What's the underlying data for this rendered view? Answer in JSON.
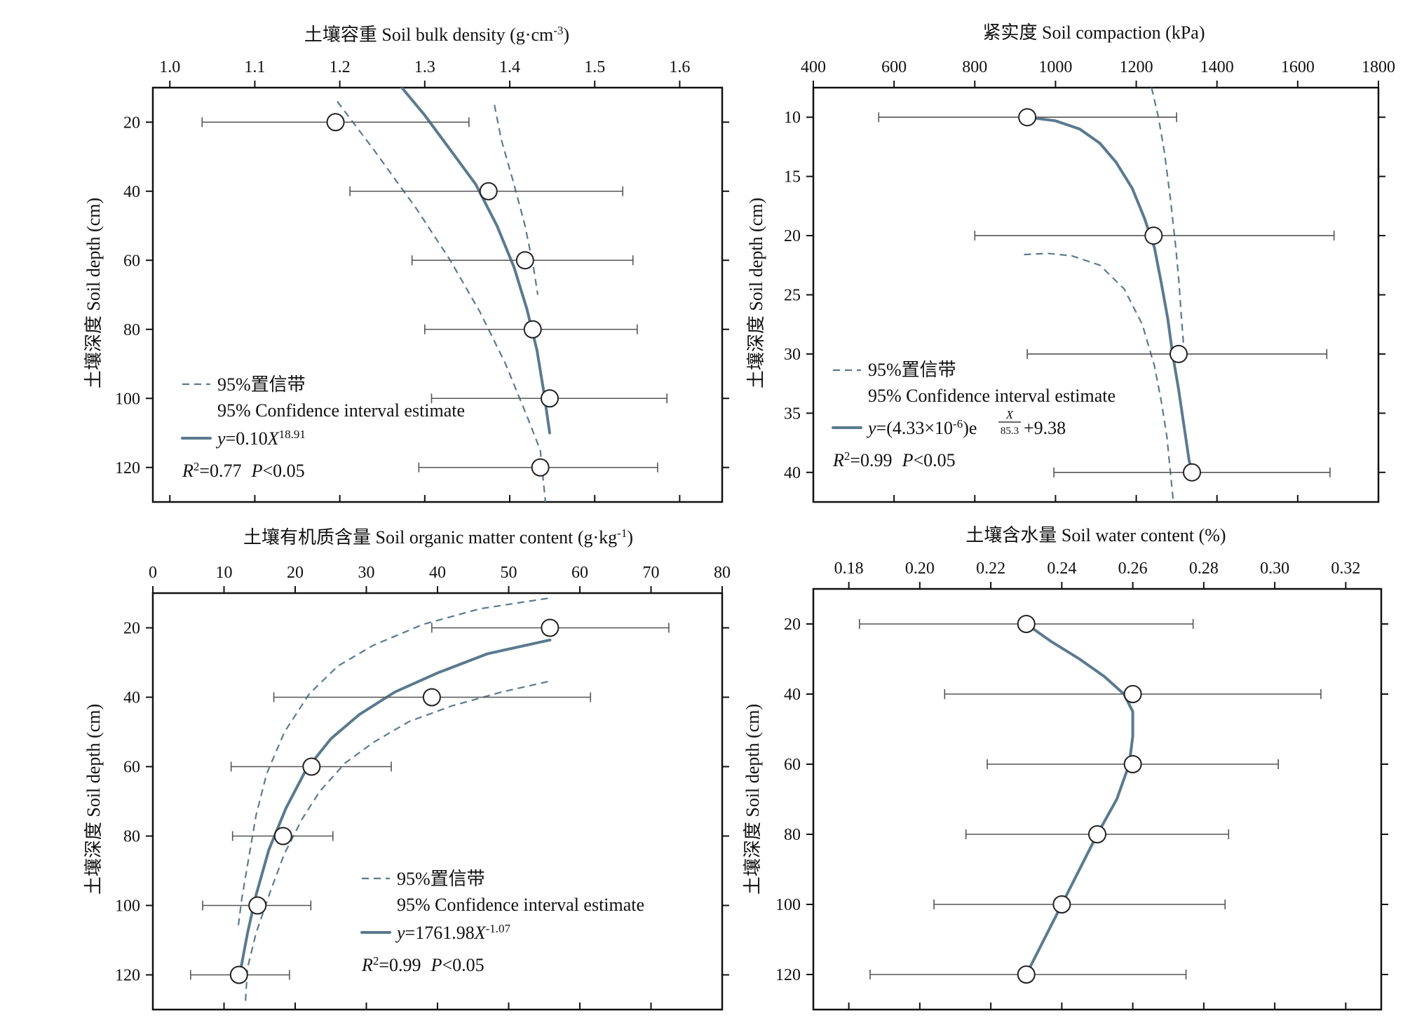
{
  "colors": {
    "fit": "#5b7a8e",
    "ci": "#5b7a8e",
    "frame": "#111111",
    "errorbar": "#555555",
    "point_fill": "#ffffff"
  },
  "chart_data": [
    {
      "id": "bulk-density",
      "type": "scatter",
      "title": "",
      "xlabel": "土壤容重 Soil bulk density (g·cm⁻³)",
      "ylabel": "土壤深度 Soil depth (cm)",
      "xaxis_position": "top",
      "xlim": [
        0.98,
        1.65
      ],
      "ylim": [
        10,
        130
      ],
      "y_inverted": true,
      "xticks": [
        1.0,
        1.1,
        1.2,
        1.3,
        1.4,
        1.5,
        1.6
      ],
      "xtick_labels": [
        "1.0",
        "1.1",
        "1.2",
        "1.3",
        "1.4",
        "1.5",
        "1.6"
      ],
      "yticks": [
        20,
        40,
        60,
        80,
        100,
        120
      ],
      "ytick_labels": [
        "20",
        "40",
        "60",
        "80",
        "100",
        "120"
      ],
      "points": [
        {
          "x": 1.195,
          "y": 20,
          "xerr_low": 1.038,
          "xerr_high": 1.352
        },
        {
          "x": 1.375,
          "y": 40,
          "xerr_low": 1.212,
          "xerr_high": 1.533
        },
        {
          "x": 1.418,
          "y": 60,
          "xerr_low": 1.285,
          "xerr_high": 1.545
        },
        {
          "x": 1.427,
          "y": 80,
          "xerr_low": 1.3,
          "xerr_high": 1.55
        },
        {
          "x": 1.447,
          "y": 100,
          "xerr_low": 1.308,
          "xerr_high": 1.585
        },
        {
          "x": 1.436,
          "y": 120,
          "xerr_low": 1.293,
          "xerr_high": 1.574
        }
      ],
      "fit_curve": [
        [
          1.273,
          10
        ],
        [
          1.3,
          18
        ],
        [
          1.33,
          28
        ],
        [
          1.36,
          38
        ],
        [
          1.385,
          50
        ],
        [
          1.405,
          62
        ],
        [
          1.42,
          74
        ],
        [
          1.432,
          86
        ],
        [
          1.44,
          98
        ],
        [
          1.447,
          110
        ]
      ],
      "ci_upper": [
        [
          1.382,
          15
        ],
        [
          1.39,
          25
        ],
        [
          1.405,
          38
        ],
        [
          1.418,
          50
        ],
        [
          1.428,
          62
        ],
        [
          1.433,
          70
        ]
      ],
      "ci_lower": [
        [
          1.197,
          14
        ],
        [
          1.24,
          28
        ],
        [
          1.29,
          45
        ],
        [
          1.33,
          60
        ],
        [
          1.365,
          75
        ],
        [
          1.395,
          90
        ],
        [
          1.42,
          105
        ],
        [
          1.436,
          115
        ],
        [
          1.44,
          125
        ],
        [
          1.442,
          130
        ]
      ],
      "legend": {
        "position": "bottom-left",
        "ci_label_cn": "95%置信带",
        "ci_label_en": "95% Confidence interval estimate",
        "eq_prefix": "y",
        "eq_body": "=0.10",
        "eq_var": "X",
        "eq_sup": "18.91",
        "r2_label": "R",
        "r2_value": "=0.77",
        "p_label": "P",
        "p_value": "<0.05"
      }
    },
    {
      "id": "compaction",
      "type": "scatter",
      "title": "",
      "xlabel": "紧实度 Soil compaction (kPa)",
      "ylabel": "土壤深度 Soil depth (cm)",
      "xaxis_position": "top",
      "xlim": [
        400,
        1800
      ],
      "ylim": [
        7.5,
        42.5
      ],
      "y_inverted": true,
      "xticks": [
        400,
        600,
        800,
        1000,
        1200,
        1400,
        1600,
        1800
      ],
      "xtick_labels": [
        "400",
        "600",
        "800",
        "1000",
        "1200",
        "1400",
        "1600",
        "1800"
      ],
      "yticks": [
        10,
        15,
        20,
        25,
        30,
        35,
        40
      ],
      "ytick_labels": [
        "10",
        "15",
        "20",
        "25",
        "30",
        "35",
        "40"
      ],
      "points": [
        {
          "x": 930,
          "y": 10,
          "xerr_low": 562,
          "xerr_high": 1300
        },
        {
          "x": 1243,
          "y": 20,
          "xerr_low": 800,
          "xerr_high": 1690
        },
        {
          "x": 1305,
          "y": 30,
          "xerr_low": 930,
          "xerr_high": 1672
        },
        {
          "x": 1338,
          "y": 40,
          "xerr_low": 996,
          "xerr_high": 1680
        }
      ],
      "fit_curve": [
        [
          930,
          10
        ],
        [
          1000,
          10.3
        ],
        [
          1060,
          11
        ],
        [
          1110,
          12.2
        ],
        [
          1150,
          13.8
        ],
        [
          1190,
          16
        ],
        [
          1220,
          18.5
        ],
        [
          1245,
          21
        ],
        [
          1262,
          24
        ],
        [
          1278,
          27
        ],
        [
          1290,
          30
        ],
        [
          1305,
          33
        ],
        [
          1318,
          36
        ],
        [
          1331,
          39
        ],
        [
          1338,
          40
        ]
      ],
      "ci_upper": [
        [
          1238,
          7.5
        ],
        [
          1255,
          10
        ],
        [
          1270,
          13
        ],
        [
          1285,
          17
        ],
        [
          1298,
          21
        ],
        [
          1306,
          24
        ],
        [
          1312,
          27
        ],
        [
          1318,
          29.5
        ]
      ],
      "ci_lower": [
        [
          922,
          21.6
        ],
        [
          980,
          21.5
        ],
        [
          1040,
          21.7
        ],
        [
          1110,
          22.5
        ],
        [
          1170,
          24.5
        ],
        [
          1215,
          27.5
        ],
        [
          1245,
          31
        ],
        [
          1262,
          34
        ],
        [
          1276,
          37
        ],
        [
          1292,
          42.5
        ]
      ],
      "legend": {
        "position": "bottom-left",
        "ci_label_cn": "95%置信带",
        "ci_label_en": "95% Confidence interval estimate",
        "eq_prefix": "y",
        "eq_body": "=(4.33×10",
        "eq_sup": "-6",
        "eq_body2": ")e",
        "eq_frac_num": "X",
        "eq_frac_den": "85.3",
        "eq_tail": "+9.38",
        "r2_label": "R",
        "r2_value": "=0.99",
        "p_label": "P",
        "p_value": "<0.05"
      }
    },
    {
      "id": "organic-matter",
      "type": "scatter",
      "title": "",
      "xlabel": "土壤有机质含量 Soil organic matter content (g·kg⁻¹)",
      "ylabel": "土壤深度 Soil depth (cm)",
      "xaxis_position": "top",
      "xlim": [
        0,
        80
      ],
      "ylim": [
        10,
        130
      ],
      "y_inverted": true,
      "xticks": [
        0,
        10,
        20,
        30,
        40,
        50,
        60,
        70,
        80
      ],
      "xtick_labels": [
        "0",
        "10",
        "20",
        "30",
        "40",
        "50",
        "60",
        "70",
        "80"
      ],
      "yticks": [
        20,
        40,
        60,
        80,
        100,
        120
      ],
      "ytick_labels": [
        "20",
        "40",
        "60",
        "80",
        "100",
        "120"
      ],
      "points": [
        {
          "x": 55.8,
          "y": 20,
          "xerr_low": 39.2,
          "xerr_high": 72.5
        },
        {
          "x": 39.2,
          "y": 40,
          "xerr_low": 17,
          "xerr_high": 61.5
        },
        {
          "x": 22.3,
          "y": 60,
          "xerr_low": 11,
          "xerr_high": 33.5
        },
        {
          "x": 18.3,
          "y": 80,
          "xerr_low": 11.2,
          "xerr_high": 25.3
        },
        {
          "x": 14.7,
          "y": 100,
          "xerr_low": 7,
          "xerr_high": 22.2
        },
        {
          "x": 12.1,
          "y": 120,
          "xerr_low": 5.3,
          "xerr_high": 19.2
        }
      ],
      "fit_curve": [
        [
          55.8,
          23.5
        ],
        [
          47,
          27.5
        ],
        [
          40,
          33
        ],
        [
          34,
          38.5
        ],
        [
          29,
          45
        ],
        [
          25,
          52
        ],
        [
          21.5,
          61
        ],
        [
          18.7,
          72
        ],
        [
          16.3,
          84
        ],
        [
          14.5,
          97
        ],
        [
          13.3,
          108
        ],
        [
          12.2,
          120
        ]
      ],
      "ci_upper": [
        [
          55.5,
          11.5
        ],
        [
          46,
          14.5
        ],
        [
          38,
          19
        ],
        [
          31,
          25
        ],
        [
          26,
          31
        ],
        [
          22,
          39
        ],
        [
          18.5,
          50
        ],
        [
          16,
          62
        ],
        [
          14.5,
          74
        ],
        [
          13.5,
          86
        ],
        [
          12.5,
          98
        ],
        [
          12,
          106
        ]
      ],
      "ci_lower": [
        [
          55.5,
          35.5
        ],
        [
          49,
          38.5
        ],
        [
          42,
          42.5
        ],
        [
          36,
          47
        ],
        [
          31,
          53
        ],
        [
          27,
          59
        ],
        [
          23.5,
          67
        ],
        [
          21,
          75
        ],
        [
          18.5,
          85
        ],
        [
          16.5,
          96
        ],
        [
          14.5,
          108
        ],
        [
          13.3,
          118
        ],
        [
          13,
          128
        ]
      ],
      "legend": {
        "position": "bottom-right",
        "ci_label_cn": "95%置信带",
        "ci_label_en": "95% Confidence interval estimate",
        "eq_prefix": "y",
        "eq_body": "=1761.98",
        "eq_var": "X",
        "eq_sup": "-1.07",
        "r2_label": "R",
        "r2_value": "=0.99",
        "p_label": "P",
        "p_value": "<0.05"
      }
    },
    {
      "id": "water-content",
      "type": "scatter",
      "title": "",
      "xlabel": "土壤含水量 Soil water content (%)",
      "ylabel": "土壤深度 Soil depth (cm)",
      "xaxis_position": "top",
      "xlim": [
        0.17,
        0.33
      ],
      "ylim": [
        10,
        130
      ],
      "y_inverted": true,
      "xticks": [
        0.18,
        0.2,
        0.22,
        0.24,
        0.26,
        0.28,
        0.3,
        0.32
      ],
      "xtick_labels": [
        "0.18",
        "0.20",
        "0.22",
        "0.24",
        "0.26",
        "0.28",
        "0.30",
        "0.32"
      ],
      "yticks": [
        20,
        40,
        60,
        80,
        100,
        120
      ],
      "ytick_labels": [
        "20",
        "40",
        "60",
        "80",
        "100",
        "120"
      ],
      "points": [
        {
          "x": 0.23,
          "y": 20,
          "xerr_low": 0.183,
          "xerr_high": 0.277
        },
        {
          "x": 0.26,
          "y": 40,
          "xerr_low": 0.207,
          "xerr_high": 0.313
        },
        {
          "x": 0.26,
          "y": 60,
          "xerr_low": 0.219,
          "xerr_high": 0.301
        },
        {
          "x": 0.25,
          "y": 80,
          "xerr_low": 0.213,
          "xerr_high": 0.287
        },
        {
          "x": 0.24,
          "y": 100,
          "xerr_low": 0.204,
          "xerr_high": 0.286
        },
        {
          "x": 0.23,
          "y": 120,
          "xerr_low": 0.186,
          "xerr_high": 0.275
        }
      ],
      "fit_curve": [
        [
          0.23,
          20
        ],
        [
          0.237,
          25
        ],
        [
          0.245,
          30
        ],
        [
          0.252,
          35
        ],
        [
          0.2575,
          40
        ],
        [
          0.26,
          45
        ],
        [
          0.26,
          52
        ],
        [
          0.259,
          60
        ],
        [
          0.2555,
          70
        ],
        [
          0.25,
          80
        ],
        [
          0.245,
          90
        ],
        [
          0.24,
          100
        ],
        [
          0.235,
          110
        ],
        [
          0.23,
          120
        ]
      ],
      "ci_upper": [],
      "ci_lower": []
    }
  ]
}
